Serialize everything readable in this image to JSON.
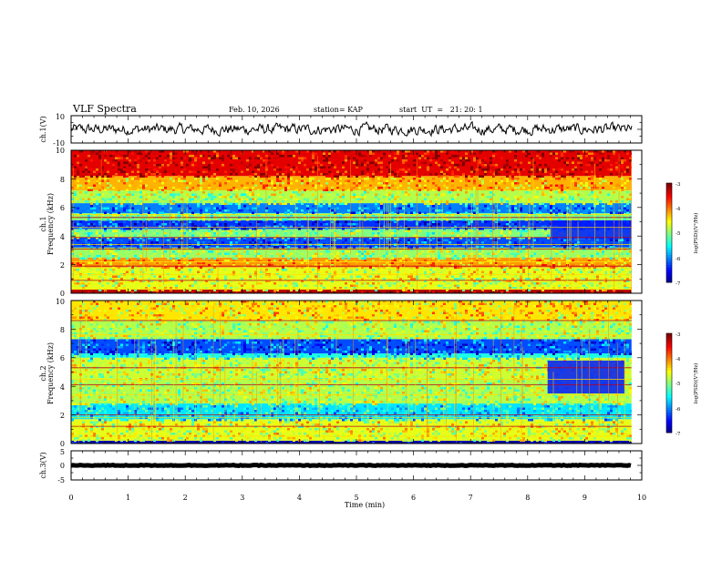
{
  "header": {
    "title": "VLF Spectra",
    "date": "Feb. 10, 2026",
    "station": "station= KAP",
    "start": "start  UT  =   21: 20: 1"
  },
  "chart_data": [
    {
      "type": "line",
      "id": "ch1-waveform",
      "ylabel": "ch.1(V)",
      "ylim": [
        -10,
        10
      ],
      "yticks": [
        "10",
        "-10"
      ],
      "xlim": [
        0,
        10
      ],
      "noise_amplitude_v": 3.5
    },
    {
      "type": "heatmap",
      "id": "ch1-spectrogram",
      "ylabel_top": "ch.1",
      "ylabel": "Frequency (kHz)",
      "ylim": [
        0,
        10
      ],
      "xlim": [
        0,
        10
      ],
      "data_end_min": 9.82,
      "yticks": [
        "0",
        "2",
        "4",
        "6",
        "8",
        "10"
      ],
      "colorbar": {
        "label": "log(PSD)(V²/Hz)",
        "range": [
          -7,
          -3
        ],
        "ticks": [
          "-3",
          "-4",
          "-5",
          "-6",
          "-7"
        ]
      },
      "bands": [
        {
          "from_khz": 0.0,
          "to_khz": 0.25,
          "level": -3.2
        },
        {
          "from_khz": 0.25,
          "to_khz": 1.8,
          "level": -4.6
        },
        {
          "from_khz": 1.8,
          "to_khz": 2.5,
          "level": -4.1
        },
        {
          "from_khz": 2.5,
          "to_khz": 3.2,
          "level": -4.9
        },
        {
          "from_khz": 3.2,
          "to_khz": 3.9,
          "level": -6.2
        },
        {
          "from_khz": 3.9,
          "to_khz": 4.5,
          "level": -5.0
        },
        {
          "from_khz": 4.5,
          "to_khz": 5.1,
          "level": -6.3
        },
        {
          "from_khz": 5.1,
          "to_khz": 5.6,
          "level": -5.0
        },
        {
          "from_khz": 5.6,
          "to_khz": 6.3,
          "level": -6.0
        },
        {
          "from_khz": 6.3,
          "to_khz": 7.2,
          "level": -4.8
        },
        {
          "from_khz": 7.2,
          "to_khz": 8.2,
          "level": -4.2
        },
        {
          "from_khz": 8.2,
          "to_khz": 10.0,
          "level": -3.4
        }
      ],
      "lines_khz": [
        0.3,
        0.9,
        1.3,
        1.9,
        2.2,
        3.1,
        3.4,
        3.9,
        4.6,
        5.3,
        5.5
      ],
      "event_patch": {
        "t0_min": 8.4,
        "t1_min": 9.82,
        "f0_khz": 3.8,
        "f1_khz": 5.1,
        "level": -6.4
      }
    },
    {
      "type": "heatmap",
      "id": "ch2-spectrogram",
      "ylabel_top": "ch.2",
      "ylabel": "Frequency (kHz)",
      "ylim": [
        0,
        10
      ],
      "xlim": [
        0,
        10
      ],
      "data_end_min": 9.82,
      "yticks": [
        "0",
        "2",
        "4",
        "6",
        "8",
        "10"
      ],
      "colorbar": {
        "label": "log(PSD)(V²/Hz)",
        "range": [
          -7,
          -3
        ],
        "ticks": [
          "-3",
          "-4",
          "-5",
          "-6",
          "-7"
        ]
      },
      "bands": [
        {
          "from_khz": 0.0,
          "to_khz": 0.2,
          "level": -6.8
        },
        {
          "from_khz": 0.2,
          "to_khz": 1.7,
          "level": -4.6
        },
        {
          "from_khz": 1.7,
          "to_khz": 2.8,
          "level": -5.6
        },
        {
          "from_khz": 2.8,
          "to_khz": 4.5,
          "level": -4.8
        },
        {
          "from_khz": 4.5,
          "to_khz": 6.0,
          "level": -4.7
        },
        {
          "from_khz": 6.0,
          "to_khz": 6.3,
          "level": -5.4
        },
        {
          "from_khz": 6.3,
          "to_khz": 7.3,
          "level": -6.2
        },
        {
          "from_khz": 7.3,
          "to_khz": 8.6,
          "level": -4.8
        },
        {
          "from_khz": 8.6,
          "to_khz": 10.0,
          "level": -4.4
        }
      ],
      "lines_khz": [
        0.5,
        1.2,
        1.8,
        2.0,
        3.4,
        4.1,
        4.5,
        5.3,
        7.6,
        8.6
      ],
      "event_patch": {
        "t0_min": 8.35,
        "t1_min": 9.7,
        "f0_khz": 3.5,
        "f1_khz": 5.8,
        "level": -6.4
      }
    },
    {
      "type": "line",
      "id": "ch3-waveform",
      "ylabel": "ch.3(V)",
      "ylim": [
        -5,
        5
      ],
      "yticks": [
        "5",
        "0",
        "-5"
      ],
      "xlim": [
        0,
        10
      ],
      "constant_v": 0,
      "noise_amplitude_v": 0.25
    }
  ],
  "xaxis": {
    "label": "Time (min)",
    "ticks": [
      "0",
      "1",
      "2",
      "3",
      "4",
      "5",
      "6",
      "7",
      "8",
      "9",
      "10"
    ]
  }
}
